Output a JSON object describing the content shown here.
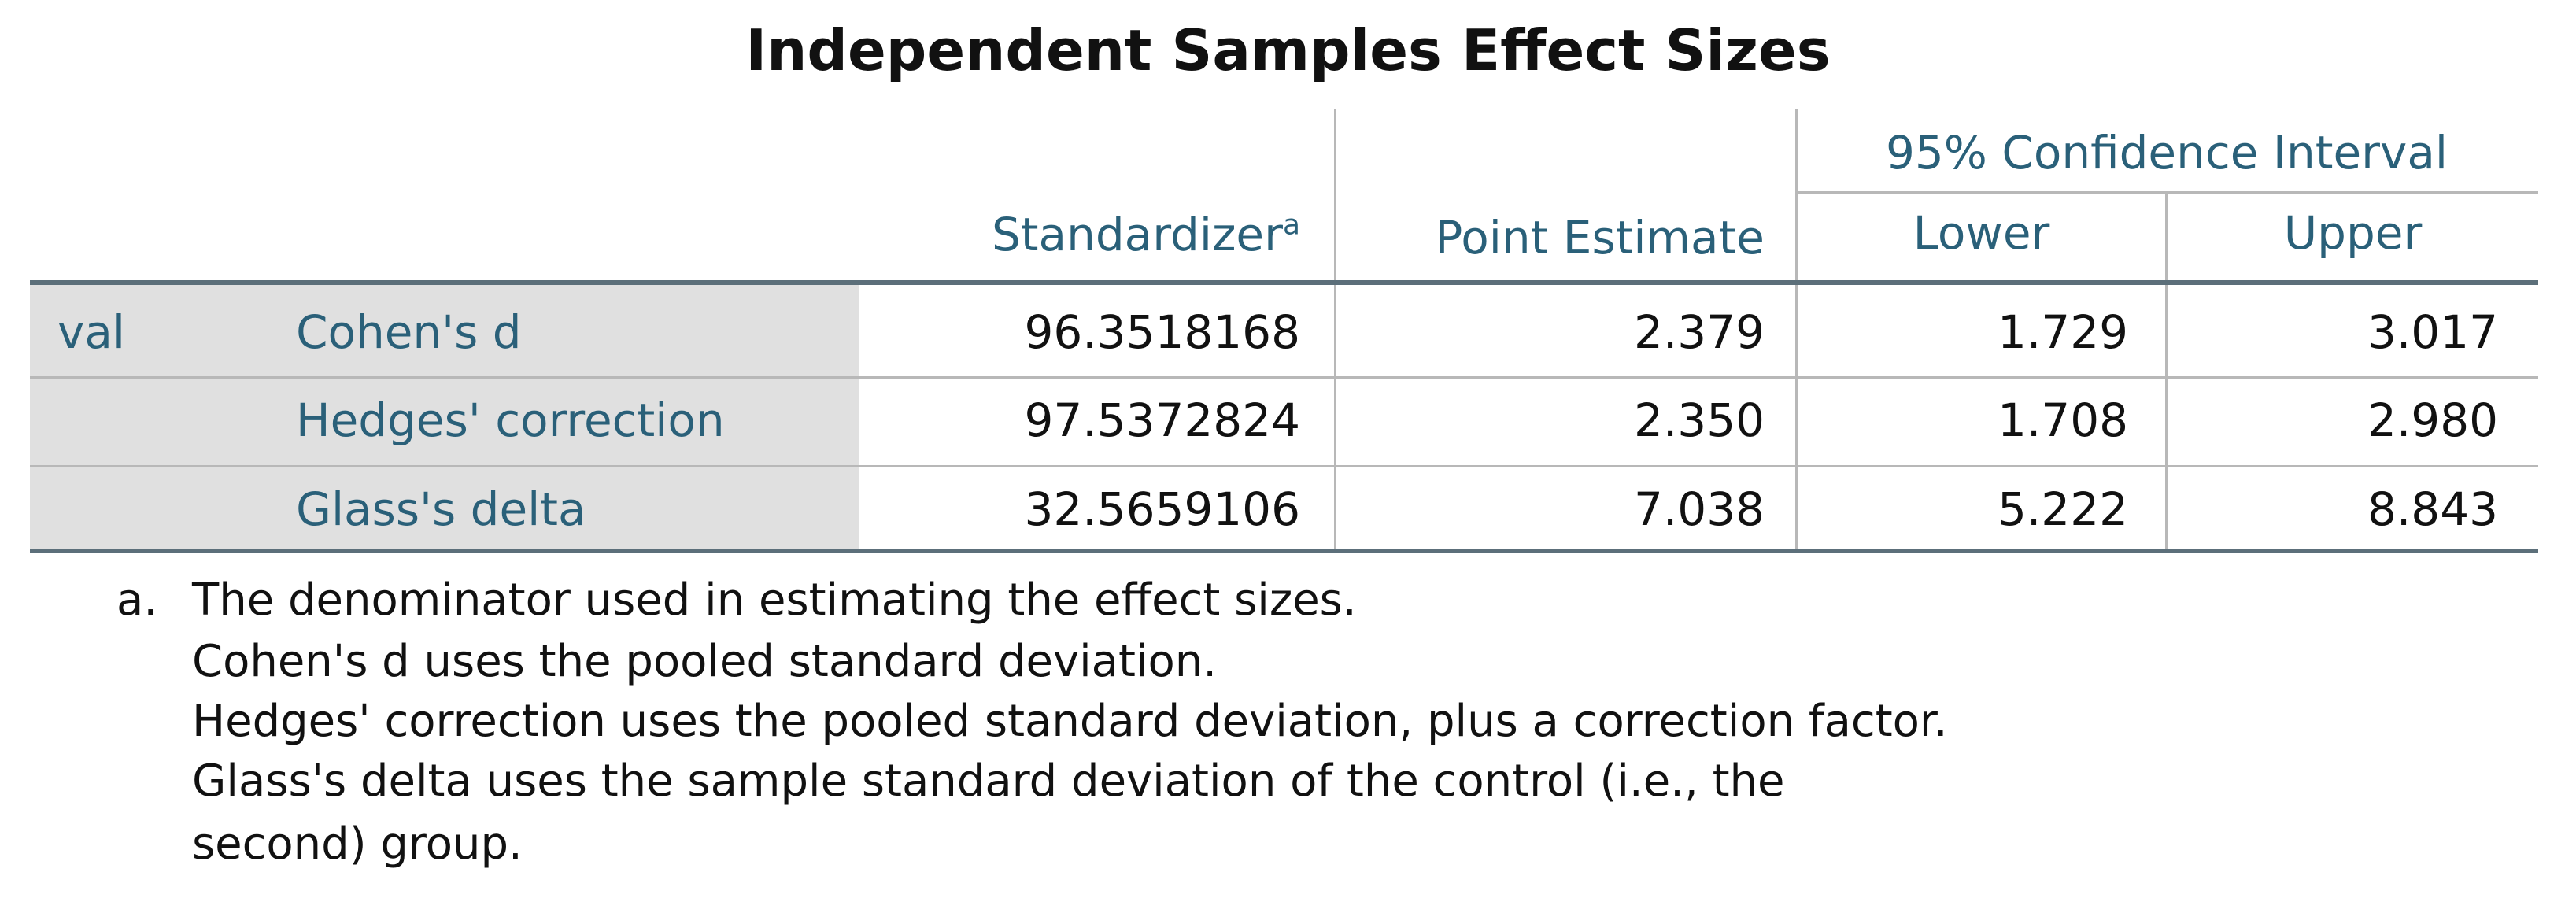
{
  "title": "Independent Samples Effect Sizes",
  "header": {
    "ci": "95% Confidence Interval",
    "standardizer": "Standardizer",
    "standardizer_note": "a",
    "point_estimate": "Point Estimate",
    "lower": "Lower",
    "upper": "Upper"
  },
  "table": {
    "group": "val",
    "rows": [
      [
        "Cohen's d",
        "96.3518168",
        "2.379",
        "1.729",
        "3.017"
      ],
      [
        "Hedges' correction",
        "97.5372824",
        "2.350",
        "1.708",
        "2.980"
      ],
      [
        "Glass's delta",
        "32.5659106",
        "7.038",
        "5.222",
        "8.843"
      ]
    ]
  },
  "footnote": {
    "marker": "a.",
    "lines": [
      "The denominator used in estimating the effect sizes.",
      "Cohen's d uses the pooled standard deviation.",
      "Hedges' correction uses the pooled standard deviation, plus a correction factor.",
      "Glass's delta uses the sample standard deviation of the control (i.e., the",
      "second) group."
    ]
  }
}
